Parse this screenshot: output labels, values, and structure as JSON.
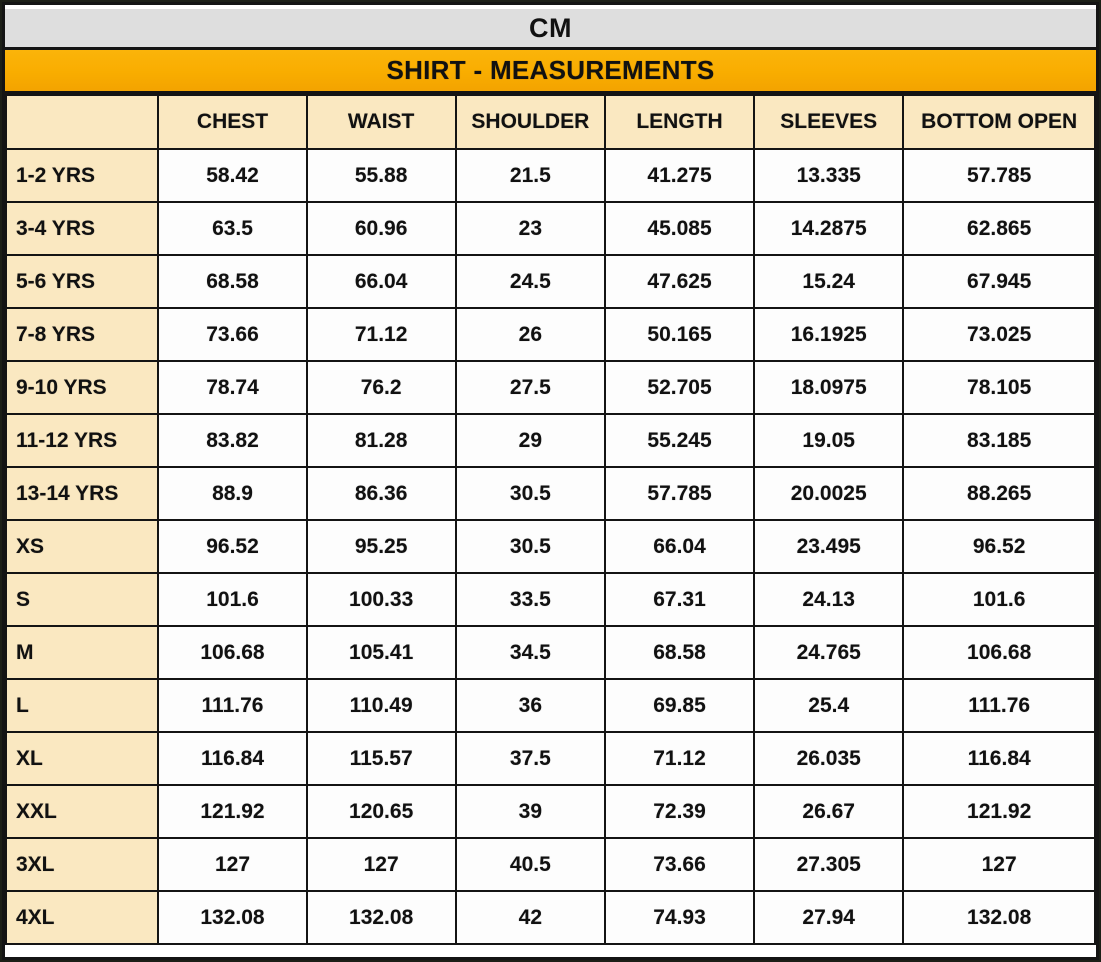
{
  "chart_data": {
    "type": "table",
    "unit": "CM",
    "title": "SHIRT - MEASUREMENTS",
    "columns": [
      "",
      "CHEST",
      "WAIST",
      "SHOULDER",
      "LENGTH",
      "SLEEVES",
      "BOTTOM OPEN"
    ],
    "rows": [
      {
        "size": "1-2 YRS",
        "values": [
          "58.42",
          "55.88",
          "21.5",
          "41.275",
          "13.335",
          "57.785"
        ]
      },
      {
        "size": "3-4 YRS",
        "values": [
          "63.5",
          "60.96",
          "23",
          "45.085",
          "14.2875",
          "62.865"
        ]
      },
      {
        "size": "5-6 YRS",
        "values": [
          "68.58",
          "66.04",
          "24.5",
          "47.625",
          "15.24",
          "67.945"
        ]
      },
      {
        "size": "7-8 YRS",
        "values": [
          "73.66",
          "71.12",
          "26",
          "50.165",
          "16.1925",
          "73.025"
        ]
      },
      {
        "size": "9-10 YRS",
        "values": [
          "78.74",
          "76.2",
          "27.5",
          "52.705",
          "18.0975",
          "78.105"
        ]
      },
      {
        "size": "11-12 YRS",
        "values": [
          "83.82",
          "81.28",
          "29",
          "55.245",
          "19.05",
          "83.185"
        ]
      },
      {
        "size": "13-14 YRS",
        "values": [
          "88.9",
          "86.36",
          "30.5",
          "57.785",
          "20.0025",
          "88.265"
        ]
      },
      {
        "size": "XS",
        "values": [
          "96.52",
          "95.25",
          "30.5",
          "66.04",
          "23.495",
          "96.52"
        ]
      },
      {
        "size": "S",
        "values": [
          "101.6",
          "100.33",
          "33.5",
          "67.31",
          "24.13",
          "101.6"
        ]
      },
      {
        "size": "M",
        "values": [
          "106.68",
          "105.41",
          "34.5",
          "68.58",
          "24.765",
          "106.68"
        ]
      },
      {
        "size": "L",
        "values": [
          "111.76",
          "110.49",
          "36",
          "69.85",
          "25.4",
          "111.76"
        ]
      },
      {
        "size": "XL",
        "values": [
          "116.84",
          "115.57",
          "37.5",
          "71.12",
          "26.035",
          "116.84"
        ]
      },
      {
        "size": "XXL",
        "values": [
          "121.92",
          "120.65",
          "39",
          "72.39",
          "26.67",
          "121.92"
        ]
      },
      {
        "size": "3XL",
        "values": [
          "127",
          "127",
          "40.5",
          "73.66",
          "27.305",
          "127"
        ]
      },
      {
        "size": "4XL",
        "values": [
          "132.08",
          "132.08",
          "42",
          "74.93",
          "27.94",
          "132.08"
        ]
      }
    ],
    "layout": {
      "legend": "none",
      "grid": "on",
      "column_widths_pct": [
        14,
        13.6,
        13.7,
        13.7,
        13.7,
        13.7,
        17.6
      ]
    }
  },
  "colors": {
    "unit_bar_bg": "#dedede",
    "title_bar_bg": "#f9ad00",
    "label_cell_bg": "#fae8c1",
    "data_cell_bg": "#fdfdfd",
    "border": "#141414",
    "text": "#111111"
  }
}
